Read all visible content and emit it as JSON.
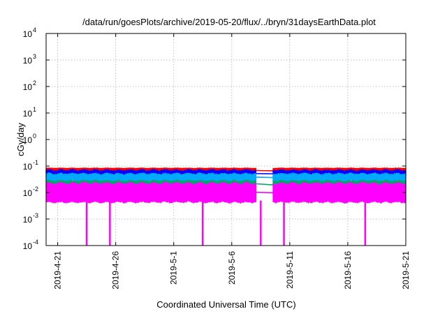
{
  "chart_data": {
    "type": "line",
    "title": "/data/run/goesPlots/archive/2019-05-20/flux/../bryn/31daysEarthData.plot",
    "xlabel": "Coordinated Universal Time (UTC)",
    "ylabel": "cGy/day",
    "yscale": "log",
    "ylim": [
      0.0001,
      10000
    ],
    "xlim": [
      "2019-04-20",
      "2019-05-21"
    ],
    "grid": true,
    "legend": "none",
    "x_ticks": [
      "2019-4-21",
      "2019-4-26",
      "2019-5-1",
      "2019-5-6",
      "2019-5-11",
      "2019-5-16",
      "2019-5-21"
    ],
    "y_ticks": [
      {
        "base": "10",
        "exp": "-4",
        "value": 0.0001
      },
      {
        "base": "10",
        "exp": "-3",
        "value": 0.001
      },
      {
        "base": "10",
        "exp": "-2",
        "value": 0.01
      },
      {
        "base": "10",
        "exp": "-1",
        "value": 0.1
      },
      {
        "base": "10",
        "exp": "0",
        "value": 1
      },
      {
        "base": "10",
        "exp": "1",
        "value": 10
      },
      {
        "base": "10",
        "exp": "2",
        "value": 100
      },
      {
        "base": "10",
        "exp": "3",
        "value": 1000
      },
      {
        "base": "10",
        "exp": "4",
        "value": 10000
      }
    ],
    "data_gap": [
      "2019-05-08",
      "2019-05-09"
    ],
    "series": [
      {
        "color": "#ff0000",
        "upper": [
          0.08,
          0.085
        ],
        "lower": [
          0.05,
          0.06
        ]
      },
      {
        "color": "#0000ff",
        "upper": [
          0.06,
          0.075
        ],
        "lower": [
          0.035,
          0.045
        ]
      },
      {
        "color": "#00aaff",
        "upper": [
          0.045,
          0.055
        ],
        "lower": [
          0.025,
          0.032
        ]
      },
      {
        "color": "#00aa66",
        "upper": [
          0.025,
          0.03
        ],
        "lower": [
          0.012,
          0.018
        ]
      },
      {
        "color": "#ff00ff",
        "upper": [
          0.018,
          0.025
        ],
        "lower": [
          0.004,
          0.005
        ]
      }
    ],
    "magenta_dropouts": [
      "2019-04-23",
      "2019-04-25",
      "2019-05-03",
      "2019-05-08",
      "2019-05-10",
      "2019-05-17"
    ]
  }
}
